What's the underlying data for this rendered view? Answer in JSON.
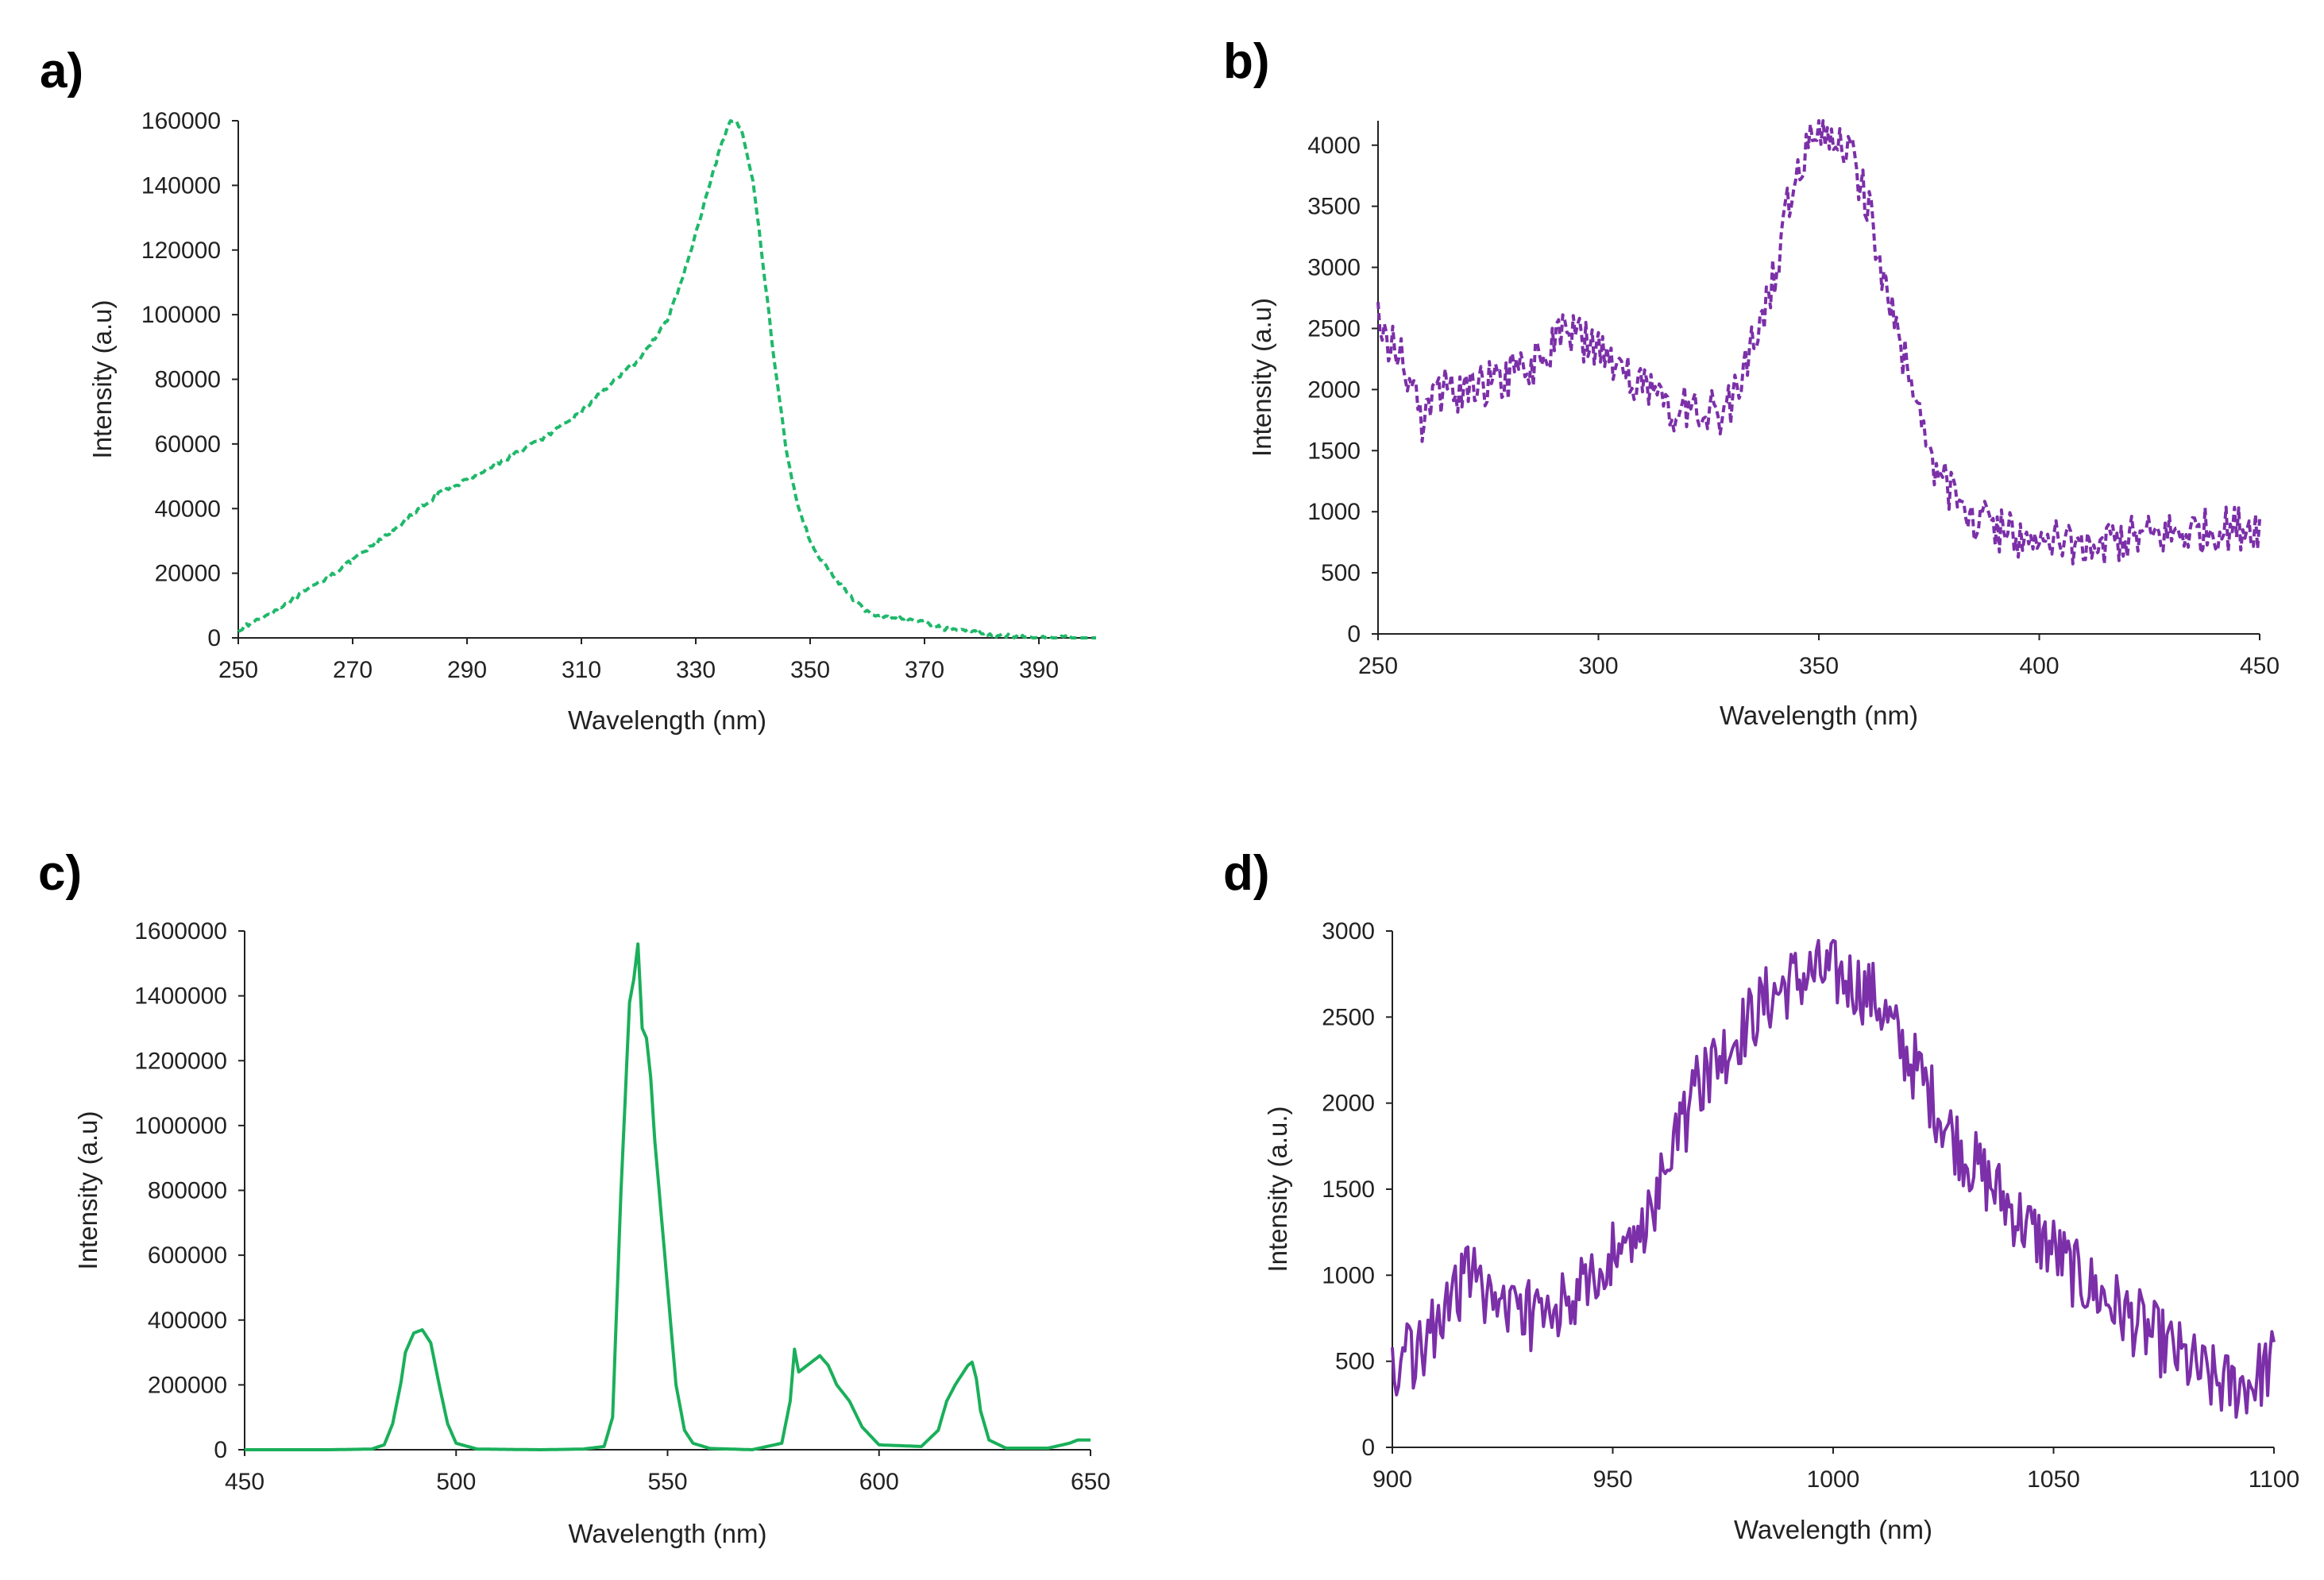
{
  "chart_data": [
    {
      "panel": "a)",
      "type": "line",
      "xlabel": "Wavelength (nm)",
      "ylabel": "Intensity (a.u)",
      "xlim": [
        250,
        400
      ],
      "ylim": [
        0,
        160000
      ],
      "xticks": [
        250,
        270,
        290,
        310,
        330,
        350,
        370,
        390
      ],
      "yticks": [
        0,
        20000,
        40000,
        60000,
        80000,
        100000,
        120000,
        140000,
        160000
      ],
      "style": "dashed",
      "color": "#1fb86a",
      "noise": 0.004,
      "series": [
        {
          "name": "a",
          "x": [
            250,
            255,
            260,
            265,
            270,
            275,
            280,
            285,
            290,
            295,
            300,
            305,
            310,
            315,
            320,
            325,
            328,
            331,
            334,
            336,
            337,
            338,
            340,
            342,
            344,
            346,
            348,
            350,
            352,
            355,
            358,
            360,
            363,
            366,
            370,
            373,
            376,
            380,
            383,
            386,
            390,
            395,
            400
          ],
          "y": [
            2500,
            7000,
            12500,
            18000,
            24000,
            30500,
            37500,
            44500,
            49000,
            53500,
            58500,
            63500,
            70000,
            78500,
            86000,
            98000,
            113000,
            131000,
            150000,
            159500,
            160000,
            157000,
            142000,
            112000,
            82000,
            56000,
            40000,
            30000,
            24000,
            17000,
            11000,
            8000,
            6500,
            6000,
            5000,
            3000,
            2500,
            1500,
            800,
            300,
            100,
            50,
            0
          ]
        }
      ]
    },
    {
      "panel": "b)",
      "type": "line",
      "xlabel": "Wavelength (nm)",
      "ylabel": "Intensity (a.u)",
      "xlim": [
        250,
        450
      ],
      "ylim": [
        0,
        4200
      ],
      "xticks": [
        250,
        300,
        350,
        400,
        450
      ],
      "yticks": [
        0,
        500,
        1000,
        1500,
        2000,
        2500,
        3000,
        3500,
        4000
      ],
      "style": "dashed",
      "color": "#7b2fa8",
      "noise": 0.045,
      "series": [
        {
          "name": "b",
          "x": [
            250,
            253,
            256,
            258,
            260,
            263,
            266,
            270,
            275,
            280,
            285,
            290,
            293,
            296,
            300,
            305,
            310,
            315,
            320,
            325,
            330,
            333,
            336,
            340,
            343,
            346,
            349,
            352,
            355,
            358,
            361,
            364,
            367,
            370,
            373,
            376,
            379,
            382,
            385,
            390,
            395,
            400,
            405,
            410,
            415,
            420,
            425,
            430,
            435,
            440,
            445,
            450
          ],
          "y": [
            2650,
            2350,
            2200,
            2050,
            1750,
            1950,
            2000,
            2000,
            2050,
            2100,
            2200,
            2350,
            2500,
            2400,
            2350,
            2150,
            2000,
            1850,
            1850,
            1800,
            1850,
            2100,
            2500,
            2950,
            3500,
            3900,
            4150,
            4150,
            4050,
            3850,
            3500,
            3050,
            2600,
            2150,
            1750,
            1400,
            1200,
            1050,
            950,
            870,
            800,
            780,
            750,
            750,
            760,
            780,
            800,
            820,
            840,
            860,
            870,
            890
          ]
        }
      ]
    },
    {
      "panel": "c)",
      "type": "line",
      "xlabel": "Wavelength (nm)",
      "ylabel": "Intensity (a.u)",
      "xlim": [
        450,
        650
      ],
      "ylim": [
        0,
        1600000
      ],
      "xticks": [
        450,
        500,
        550,
        600,
        650
      ],
      "yticks": [
        0,
        200000,
        400000,
        600000,
        800000,
        1000000,
        1200000,
        1400000,
        1600000
      ],
      "style": "solid",
      "color": "#1aaf5a",
      "noise": 0,
      "series": [
        {
          "name": "c",
          "x": [
            450,
            470,
            480,
            483,
            485,
            487,
            488,
            490,
            492,
            494,
            496,
            498,
            500,
            505,
            520,
            530,
            535,
            537,
            539,
            541,
            542,
            543,
            544,
            545,
            546,
            547,
            548,
            550,
            552,
            554,
            556,
            560,
            570,
            577,
            579,
            580,
            581,
            582,
            584,
            586,
            588,
            590,
            593,
            596,
            600,
            610,
            614,
            616,
            618,
            620,
            621,
            622,
            623,
            624,
            626,
            630,
            640,
            645,
            647,
            650
          ],
          "y": [
            0,
            0,
            2000,
            15000,
            80000,
            210000,
            300000,
            360000,
            370000,
            330000,
            200000,
            80000,
            20000,
            2000,
            0,
            2000,
            10000,
            100000,
            800000,
            1380000,
            1450000,
            1560000,
            1300000,
            1270000,
            1150000,
            950000,
            800000,
            500000,
            200000,
            60000,
            20000,
            4000,
            0,
            20000,
            150000,
            310000,
            240000,
            250000,
            270000,
            290000,
            260000,
            200000,
            150000,
            70000,
            15000,
            10000,
            60000,
            150000,
            200000,
            240000,
            260000,
            270000,
            220000,
            120000,
            30000,
            5000,
            5000,
            20000,
            30000,
            30000
          ]
        }
      ]
    },
    {
      "panel": "d)",
      "type": "line",
      "xlabel": "Wavelength (nm)",
      "ylabel": "Intensity (a.u.)",
      "xlim": [
        900,
        1100
      ],
      "ylim": [
        0,
        3000
      ],
      "xticks": [
        900,
        950,
        1000,
        1050,
        1100
      ],
      "yticks": [
        0,
        500,
        1000,
        1500,
        2000,
        2500,
        3000
      ],
      "style": "solid",
      "color": "#7b2fa8",
      "noise": 0.07,
      "series": [
        {
          "name": "d",
          "x": [
            900,
            905,
            910,
            915,
            918,
            920,
            925,
            930,
            935,
            940,
            945,
            950,
            955,
            960,
            965,
            970,
            975,
            980,
            985,
            990,
            995,
            1000,
            1005,
            1010,
            1015,
            1020,
            1025,
            1030,
            1035,
            1040,
            1045,
            1050,
            1055,
            1060,
            1065,
            1070,
            1075,
            1080,
            1085,
            1090,
            1095,
            1100
          ],
          "y": [
            450,
            550,
            700,
            900,
            1050,
            950,
            800,
            750,
            800,
            900,
            1000,
            1100,
            1200,
            1450,
            1800,
            2150,
            2300,
            2450,
            2600,
            2700,
            2750,
            2750,
            2700,
            2600,
            2350,
            2150,
            1900,
            1700,
            1550,
            1400,
            1250,
            1150,
            1000,
            900,
            800,
            700,
            600,
            500,
            400,
            350,
            380,
            500
          ]
        }
      ]
    }
  ]
}
